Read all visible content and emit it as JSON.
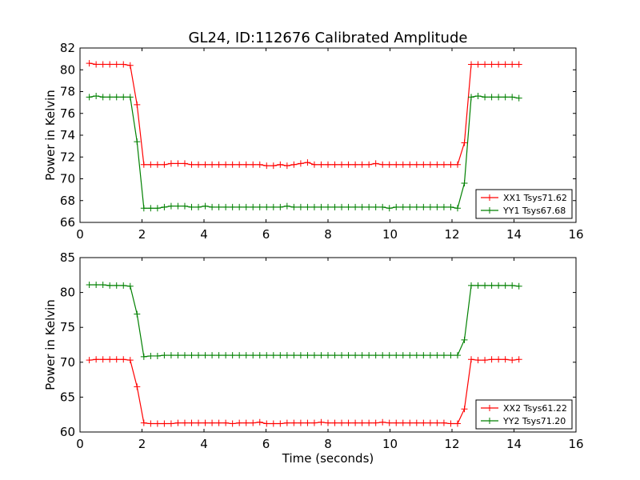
{
  "figure": {
    "title": "GL24, ID:112676 Calibrated Amplitude"
  },
  "chart_data": [
    {
      "type": "line",
      "ylabel": "Power in Kelvin",
      "xlabel": "",
      "xlim": [
        0,
        16
      ],
      "ylim": [
        66,
        82
      ],
      "xticks": [
        0,
        2,
        4,
        6,
        8,
        10,
        12,
        14,
        16
      ],
      "yticks": [
        66,
        68,
        70,
        72,
        74,
        76,
        78,
        80,
        82
      ],
      "legend_position": "lower-right",
      "grid": false,
      "x": [
        0.3,
        0.52,
        0.74,
        0.96,
        1.18,
        1.4,
        1.62,
        1.84,
        2.06,
        2.28,
        2.5,
        2.72,
        2.94,
        3.16,
        3.38,
        3.6,
        3.82,
        4.04,
        4.26,
        4.48,
        4.7,
        4.92,
        5.14,
        5.36,
        5.58,
        5.8,
        6.02,
        6.24,
        6.46,
        6.68,
        6.9,
        7.12,
        7.34,
        7.56,
        7.78,
        8.0,
        8.22,
        8.44,
        8.66,
        8.88,
        9.1,
        9.32,
        9.54,
        9.76,
        9.98,
        10.2,
        10.42,
        10.64,
        10.86,
        11.08,
        11.3,
        11.52,
        11.74,
        11.96,
        12.18,
        12.4,
        12.62,
        12.84,
        13.06,
        13.28,
        13.5,
        13.72,
        13.94,
        14.16
      ],
      "series": [
        {
          "name": "XX1 Tsys71.62",
          "color": "#ff0000",
          "values": [
            80.6,
            80.5,
            80.5,
            80.5,
            80.5,
            80.5,
            80.4,
            76.8,
            71.3,
            71.3,
            71.3,
            71.3,
            71.4,
            71.4,
            71.4,
            71.3,
            71.3,
            71.3,
            71.3,
            71.3,
            71.3,
            71.3,
            71.3,
            71.3,
            71.3,
            71.3,
            71.2,
            71.2,
            71.3,
            71.2,
            71.3,
            71.4,
            71.5,
            71.3,
            71.3,
            71.3,
            71.3,
            71.3,
            71.3,
            71.3,
            71.3,
            71.3,
            71.4,
            71.3,
            71.3,
            71.3,
            71.3,
            71.3,
            71.3,
            71.3,
            71.3,
            71.3,
            71.3,
            71.3,
            71.3,
            73.3,
            80.5,
            80.5,
            80.5,
            80.5,
            80.5,
            80.5,
            80.5,
            80.5
          ]
        },
        {
          "name": "YY1 Tsys67.68",
          "color": "#008000",
          "values": [
            77.5,
            77.6,
            77.5,
            77.5,
            77.5,
            77.5,
            77.5,
            73.4,
            67.3,
            67.3,
            67.3,
            67.4,
            67.5,
            67.5,
            67.5,
            67.4,
            67.4,
            67.5,
            67.4,
            67.4,
            67.4,
            67.4,
            67.4,
            67.4,
            67.4,
            67.4,
            67.4,
            67.4,
            67.4,
            67.5,
            67.4,
            67.4,
            67.4,
            67.4,
            67.4,
            67.4,
            67.4,
            67.4,
            67.4,
            67.4,
            67.4,
            67.4,
            67.4,
            67.4,
            67.3,
            67.4,
            67.4,
            67.4,
            67.4,
            67.4,
            67.4,
            67.4,
            67.4,
            67.4,
            67.3,
            69.6,
            77.5,
            77.6,
            77.5,
            77.5,
            77.5,
            77.5,
            77.5,
            77.4
          ]
        }
      ]
    },
    {
      "type": "line",
      "ylabel": "Power in Kelvin",
      "xlabel": "Time (seconds)",
      "xlim": [
        0,
        16
      ],
      "ylim": [
        60,
        85
      ],
      "xticks": [
        0,
        2,
        4,
        6,
        8,
        10,
        12,
        14,
        16
      ],
      "yticks": [
        60,
        65,
        70,
        75,
        80,
        85
      ],
      "legend_position": "lower-right",
      "grid": false,
      "x": [
        0.3,
        0.52,
        0.74,
        0.96,
        1.18,
        1.4,
        1.62,
        1.84,
        2.06,
        2.28,
        2.5,
        2.72,
        2.94,
        3.16,
        3.38,
        3.6,
        3.82,
        4.04,
        4.26,
        4.48,
        4.7,
        4.92,
        5.14,
        5.36,
        5.58,
        5.8,
        6.02,
        6.24,
        6.46,
        6.68,
        6.9,
        7.12,
        7.34,
        7.56,
        7.78,
        8.0,
        8.22,
        8.44,
        8.66,
        8.88,
        9.1,
        9.32,
        9.54,
        9.76,
        9.98,
        10.2,
        10.42,
        10.64,
        10.86,
        11.08,
        11.3,
        11.52,
        11.74,
        11.96,
        12.18,
        12.4,
        12.62,
        12.84,
        13.06,
        13.28,
        13.5,
        13.72,
        13.94,
        14.16
      ],
      "series": [
        {
          "name": "XX2 Tsys61.22",
          "color": "#ff0000",
          "values": [
            70.3,
            70.4,
            70.4,
            70.4,
            70.4,
            70.4,
            70.3,
            66.5,
            61.3,
            61.2,
            61.2,
            61.2,
            61.2,
            61.3,
            61.3,
            61.3,
            61.3,
            61.3,
            61.3,
            61.3,
            61.3,
            61.2,
            61.3,
            61.3,
            61.3,
            61.4,
            61.2,
            61.2,
            61.2,
            61.3,
            61.3,
            61.3,
            61.3,
            61.3,
            61.4,
            61.3,
            61.3,
            61.3,
            61.3,
            61.3,
            61.3,
            61.3,
            61.3,
            61.4,
            61.3,
            61.3,
            61.3,
            61.3,
            61.3,
            61.3,
            61.3,
            61.3,
            61.3,
            61.2,
            61.2,
            63.3,
            70.4,
            70.3,
            70.3,
            70.4,
            70.4,
            70.4,
            70.3,
            70.4
          ]
        },
        {
          "name": "YY2 Tsys71.20",
          "color": "#008000",
          "values": [
            81.1,
            81.1,
            81.1,
            81.0,
            81.0,
            81.0,
            80.9,
            76.9,
            70.8,
            70.9,
            70.9,
            71.0,
            71.0,
            71.0,
            71.0,
            71.0,
            71.0,
            71.0,
            71.0,
            71.0,
            71.0,
            71.0,
            71.0,
            71.0,
            71.0,
            71.0,
            71.0,
            71.0,
            71.0,
            71.0,
            71.0,
            71.0,
            71.0,
            71.0,
            71.0,
            71.0,
            71.0,
            71.0,
            71.0,
            71.0,
            71.0,
            71.0,
            71.0,
            71.0,
            71.0,
            71.0,
            71.0,
            71.0,
            71.0,
            71.0,
            71.0,
            71.0,
            71.0,
            71.0,
            71.0,
            73.2,
            81.0,
            81.0,
            81.0,
            81.0,
            81.0,
            81.0,
            81.0,
            80.9
          ]
        }
      ]
    }
  ]
}
